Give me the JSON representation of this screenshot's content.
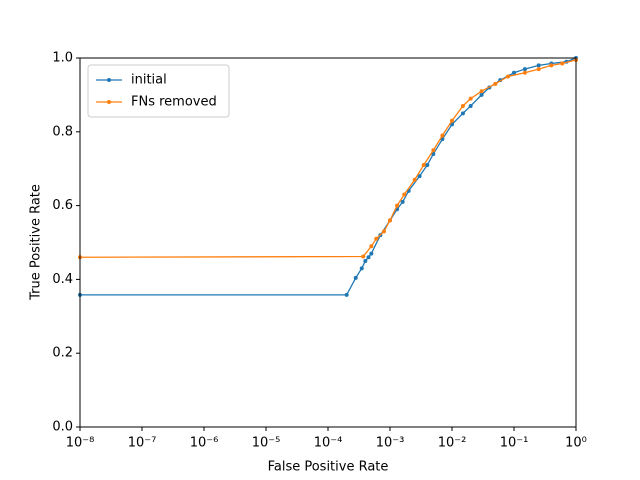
{
  "chart_data": {
    "type": "line",
    "xscale": "log",
    "xlabel": "False Positive Rate",
    "ylabel": "True Positive Rate",
    "xlim": [
      1e-08,
      1
    ],
    "ylim": [
      0,
      1
    ],
    "xticks": [
      {
        "value": 1e-08,
        "label": "10⁻⁸"
      },
      {
        "value": 1e-07,
        "label": "10⁻⁷"
      },
      {
        "value": 1e-06,
        "label": "10⁻⁶"
      },
      {
        "value": 1e-05,
        "label": "10⁻⁵"
      },
      {
        "value": 0.0001,
        "label": "10⁻⁴"
      },
      {
        "value": 0.001,
        "label": "10⁻³"
      },
      {
        "value": 0.01,
        "label": "10⁻²"
      },
      {
        "value": 0.1,
        "label": "10⁻¹"
      },
      {
        "value": 1,
        "label": "10⁰"
      }
    ],
    "yticks": [
      {
        "value": 0,
        "label": "0.0"
      },
      0.2,
      0.4,
      0.6,
      0.8,
      {
        "value": 1,
        "label": "1.0"
      }
    ],
    "legend": "upper left",
    "series": [
      {
        "name": "initial",
        "color": "#1f77b4",
        "x": [
          1e-08,
          0.0002,
          0.00028,
          0.00035,
          0.0004,
          0.00045,
          0.0005,
          0.0007,
          0.001,
          0.0013,
          0.0016,
          0.002,
          0.003,
          0.004,
          0.005,
          0.007,
          0.01,
          0.015,
          0.02,
          0.03,
          0.04,
          0.06,
          0.1,
          0.15,
          0.25,
          0.4,
          0.7,
          1
        ],
        "values": [
          0.358,
          0.358,
          0.404,
          0.43,
          0.45,
          0.46,
          0.47,
          0.52,
          0.56,
          0.59,
          0.61,
          0.64,
          0.68,
          0.71,
          0.74,
          0.78,
          0.82,
          0.85,
          0.87,
          0.9,
          0.92,
          0.94,
          0.96,
          0.97,
          0.98,
          0.985,
          0.99,
          1
        ]
      },
      {
        "name": "FNs removed",
        "color": "#ff7f0e",
        "x": [
          1e-08,
          0.00037,
          0.0005,
          0.0006,
          0.0008,
          0.001,
          0.0013,
          0.0017,
          0.0025,
          0.0035,
          0.005,
          0.007,
          0.01,
          0.015,
          0.02,
          0.03,
          0.05,
          0.08,
          0.15,
          0.25,
          0.4,
          0.6,
          1
        ],
        "values": [
          0.46,
          0.462,
          0.49,
          0.51,
          0.53,
          0.56,
          0.6,
          0.63,
          0.67,
          0.71,
          0.75,
          0.79,
          0.83,
          0.87,
          0.89,
          0.91,
          0.93,
          0.95,
          0.96,
          0.97,
          0.98,
          0.985,
          0.995
        ]
      }
    ]
  }
}
